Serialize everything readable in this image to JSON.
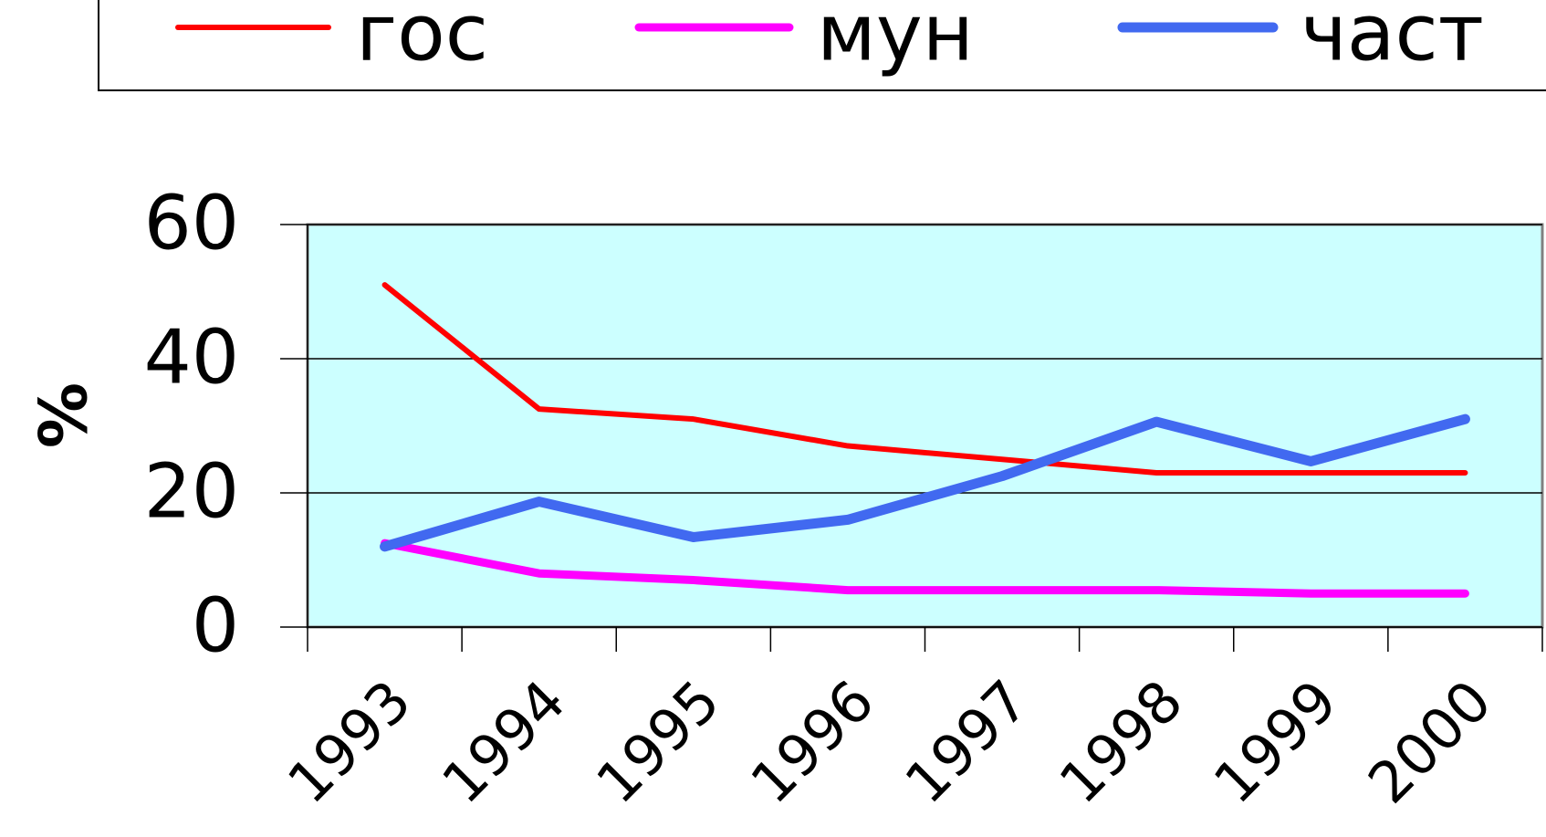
{
  "chart_data": {
    "type": "line",
    "y_label": "%",
    "categories": [
      "1993",
      "1994",
      "1995",
      "1996",
      "1997",
      "1998",
      "1999",
      "2000"
    ],
    "series": [
      {
        "name": "гос",
        "color": "#ff0000",
        "width": 6,
        "values": [
          51,
          32.5,
          31,
          27,
          25,
          23,
          23,
          23
        ]
      },
      {
        "name": "мун",
        "color": "#ff00ff",
        "width": 9,
        "values": [
          12.5,
          8,
          7,
          5.5,
          5.5,
          5.5,
          5,
          5
        ]
      },
      {
        "name": "част",
        "color": "#4169f0",
        "width": 11,
        "values": [
          12,
          18.7,
          13.4,
          16,
          22.5,
          30.6,
          24.7,
          31
        ]
      }
    ],
    "ylim": [
      0,
      60
    ],
    "yticks": [
      0,
      20,
      40,
      60
    ],
    "grid": true,
    "plot_background": "#ccffff",
    "legend_position": "top"
  }
}
